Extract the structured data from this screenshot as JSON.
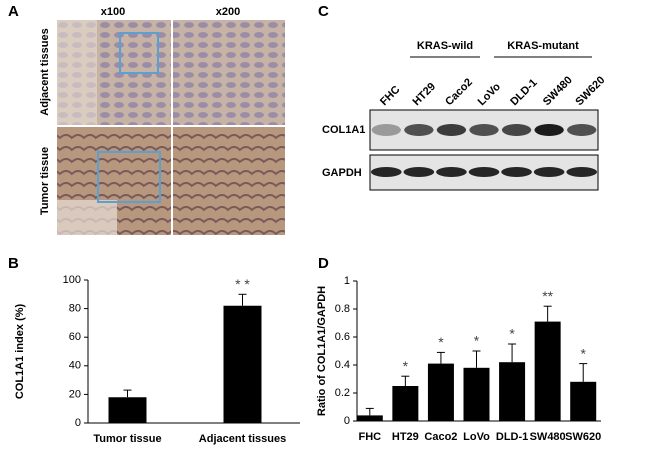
{
  "panel_labels": [
    "A",
    "B",
    "C",
    "D"
  ],
  "panel_a": {
    "columns": [
      "x100",
      "x200"
    ],
    "rows": [
      "Adjacent tissues",
      "Tumor tissue"
    ]
  },
  "panel_c": {
    "groups": [
      "KRAS-wild",
      "KRAS-mutant"
    ],
    "lanes": [
      "FHC",
      "HT29",
      "Caco2",
      "LoVo",
      "DLD-1",
      "SW480",
      "SW620"
    ],
    "blots": [
      "COL1A1",
      "GAPDH"
    ]
  },
  "chart_data": [
    {
      "type": "bar",
      "y_label": "COL1A1 index (%)",
      "categories": [
        "Tumor tissue",
        "Adjacent tissues"
      ],
      "values": [
        18,
        82
      ],
      "error": [
        5,
        8
      ],
      "significance": [
        null,
        "* *"
      ],
      "color": "#000000",
      "ylim": [
        0,
        100
      ],
      "yticks": [
        0,
        20,
        40,
        60,
        80,
        100
      ]
    },
    {
      "type": "bar",
      "y_label": "Ratio of COL1A1/GAPDH",
      "categories": [
        "FHC",
        "HT29",
        "Caco2",
        "LoVo",
        "DLD-1",
        "SW480",
        "SW620"
      ],
      "values": [
        0.04,
        0.25,
        0.41,
        0.38,
        0.42,
        0.71,
        0.28
      ],
      "error": [
        0.05,
        0.07,
        0.08,
        0.12,
        0.13,
        0.11,
        0.13
      ],
      "significance": [
        null,
        "*",
        "*",
        "*",
        "*",
        "**",
        "*"
      ],
      "color": "#000000",
      "ylim": [
        0,
        1
      ],
      "yticks": [
        0,
        0.2,
        0.4,
        0.6,
        0.8,
        1
      ]
    }
  ]
}
